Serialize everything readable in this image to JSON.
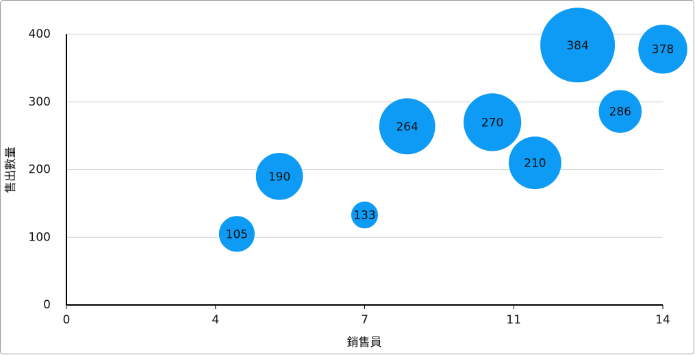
{
  "chart_data": {
    "type": "bubble",
    "x_label": "銷售員",
    "y_label": "售出數量",
    "series": [
      {
        "color": "#0d9bf5",
        "x": [
          4,
          5,
          7,
          8,
          10,
          11,
          12,
          13,
          14
        ],
        "values": [
          105,
          190,
          133,
          264,
          270,
          210,
          384,
          286,
          378
        ],
        "sizes": [
          7,
          12,
          4,
          17,
          18,
          15,
          30,
          10,
          13
        ]
      }
    ],
    "xlim": [
      0,
      14
    ],
    "xticks": [
      0,
      {
        "value": 3.5,
        "label": "4"
      },
      7,
      {
        "value": 10.5,
        "label": "11"
      },
      14
    ],
    "ylim": [
      0,
      400
    ],
    "yticks": [
      0,
      100,
      200,
      300,
      400
    ],
    "grid": true
  }
}
